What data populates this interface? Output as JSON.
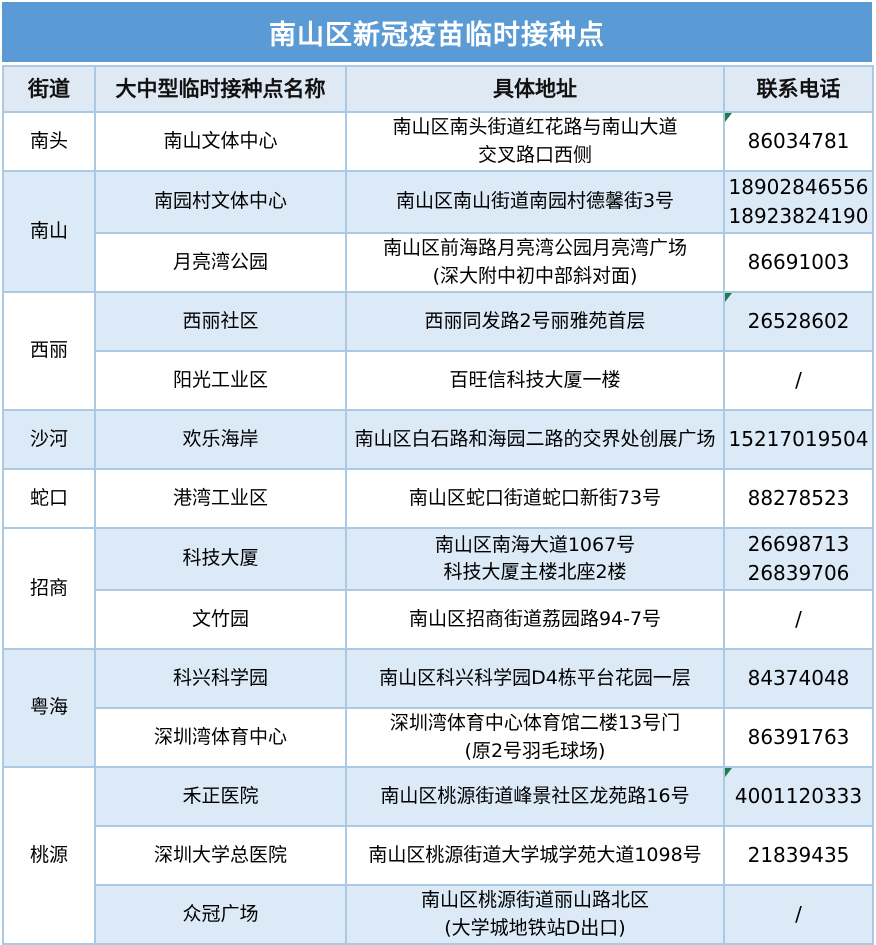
{
  "title": "南山区新冠疫苗临时接种点",
  "columns": [
    "街道",
    "大中型临时接种点名称",
    "具体地址",
    "联系电话"
  ],
  "colors": {
    "banner_bg": "#5A9BD5",
    "banner_text": "#FFFFFF",
    "header_bg": "#DEE9F4",
    "band_bg": "#DCE9F6",
    "row_bg": "#FFFFFF",
    "grid": "#ABC9E2",
    "error_triangle": "#1E7C4D",
    "text": "#000000"
  },
  "groups": [
    {
      "street": "南头",
      "street_shaded": false,
      "sites": [
        {
          "name": "南山文体中心",
          "address": [
            "南山区南头街道红花路与南山大道",
            "交叉路口西侧"
          ],
          "phones": [
            "86034781"
          ],
          "shaded": false,
          "error_marker": true
        }
      ]
    },
    {
      "street": "南山",
      "street_shaded": true,
      "sites": [
        {
          "name": "南园村文体中心",
          "address": [
            "南山区南山街道南园村德馨街3号"
          ],
          "phones": [
            "18902846556",
            "18923824190"
          ],
          "shaded": true,
          "error_marker": false
        },
        {
          "name": "月亮湾公园",
          "address": [
            "南山区前海路月亮湾公园月亮湾广场",
            "(深大附中初中部斜对面)"
          ],
          "phones": [
            "86691003"
          ],
          "shaded": false,
          "error_marker": false
        }
      ]
    },
    {
      "street": "西丽",
      "street_shaded": false,
      "sites": [
        {
          "name": "西丽社区",
          "address": [
            "西丽同发路2号丽雅苑首层"
          ],
          "phones": [
            "26528602"
          ],
          "shaded": true,
          "error_marker": true
        },
        {
          "name": "阳光工业区",
          "address": [
            "百旺信科技大厦一楼"
          ],
          "phones": [
            "/"
          ],
          "shaded": false,
          "error_marker": false
        }
      ]
    },
    {
      "street": "沙河",
      "street_shaded": true,
      "sites": [
        {
          "name": "欢乐海岸",
          "address": [
            "南山区白石路和海园二路的交界处创展广场"
          ],
          "phones": [
            "15217019504"
          ],
          "shaded": true,
          "error_marker": false
        }
      ]
    },
    {
      "street": "蛇口",
      "street_shaded": false,
      "sites": [
        {
          "name": "港湾工业区",
          "address": [
            "南山区蛇口街道蛇口新街73号"
          ],
          "phones": [
            "88278523"
          ],
          "shaded": false,
          "error_marker": false
        }
      ]
    },
    {
      "street": "招商",
      "street_shaded": false,
      "sites": [
        {
          "name": "科技大厦",
          "address": [
            "南山区南海大道1067号",
            "科技大厦主楼北座2楼"
          ],
          "phones": [
            "26698713",
            "26839706"
          ],
          "shaded": true,
          "error_marker": false
        },
        {
          "name": "文竹园",
          "address": [
            "南山区招商街道荔园路94-7号"
          ],
          "phones": [
            "/"
          ],
          "shaded": false,
          "error_marker": false
        }
      ]
    },
    {
      "street": "粤海",
      "street_shaded": true,
      "sites": [
        {
          "name": "科兴科学园",
          "address": [
            "南山区科兴科学园D4栋平台花园一层"
          ],
          "phones": [
            "84374048"
          ],
          "shaded": true,
          "error_marker": false
        },
        {
          "name": "深圳湾体育中心",
          "address": [
            "深圳湾体育中心体育馆二楼13号门",
            "(原2号羽毛球场)"
          ],
          "phones": [
            "86391763"
          ],
          "shaded": false,
          "error_marker": false
        }
      ]
    },
    {
      "street": "桃源",
      "street_shaded": false,
      "sites": [
        {
          "name": "禾正医院",
          "address": [
            "南山区桃源街道峰景社区龙苑路16号"
          ],
          "phones": [
            "4001120333"
          ],
          "shaded": true,
          "error_marker": true
        },
        {
          "name": "深圳大学总医院",
          "address": [
            "南山区桃源街道大学城学苑大道1098号"
          ],
          "phones": [
            "21839435"
          ],
          "shaded": false,
          "error_marker": false
        },
        {
          "name": "众冠广场",
          "address": [
            "南山区桃源街道丽山路北区",
            "(大学城地铁站D出口)"
          ],
          "phones": [
            "/"
          ],
          "shaded": true,
          "error_marker": false
        }
      ]
    }
  ]
}
